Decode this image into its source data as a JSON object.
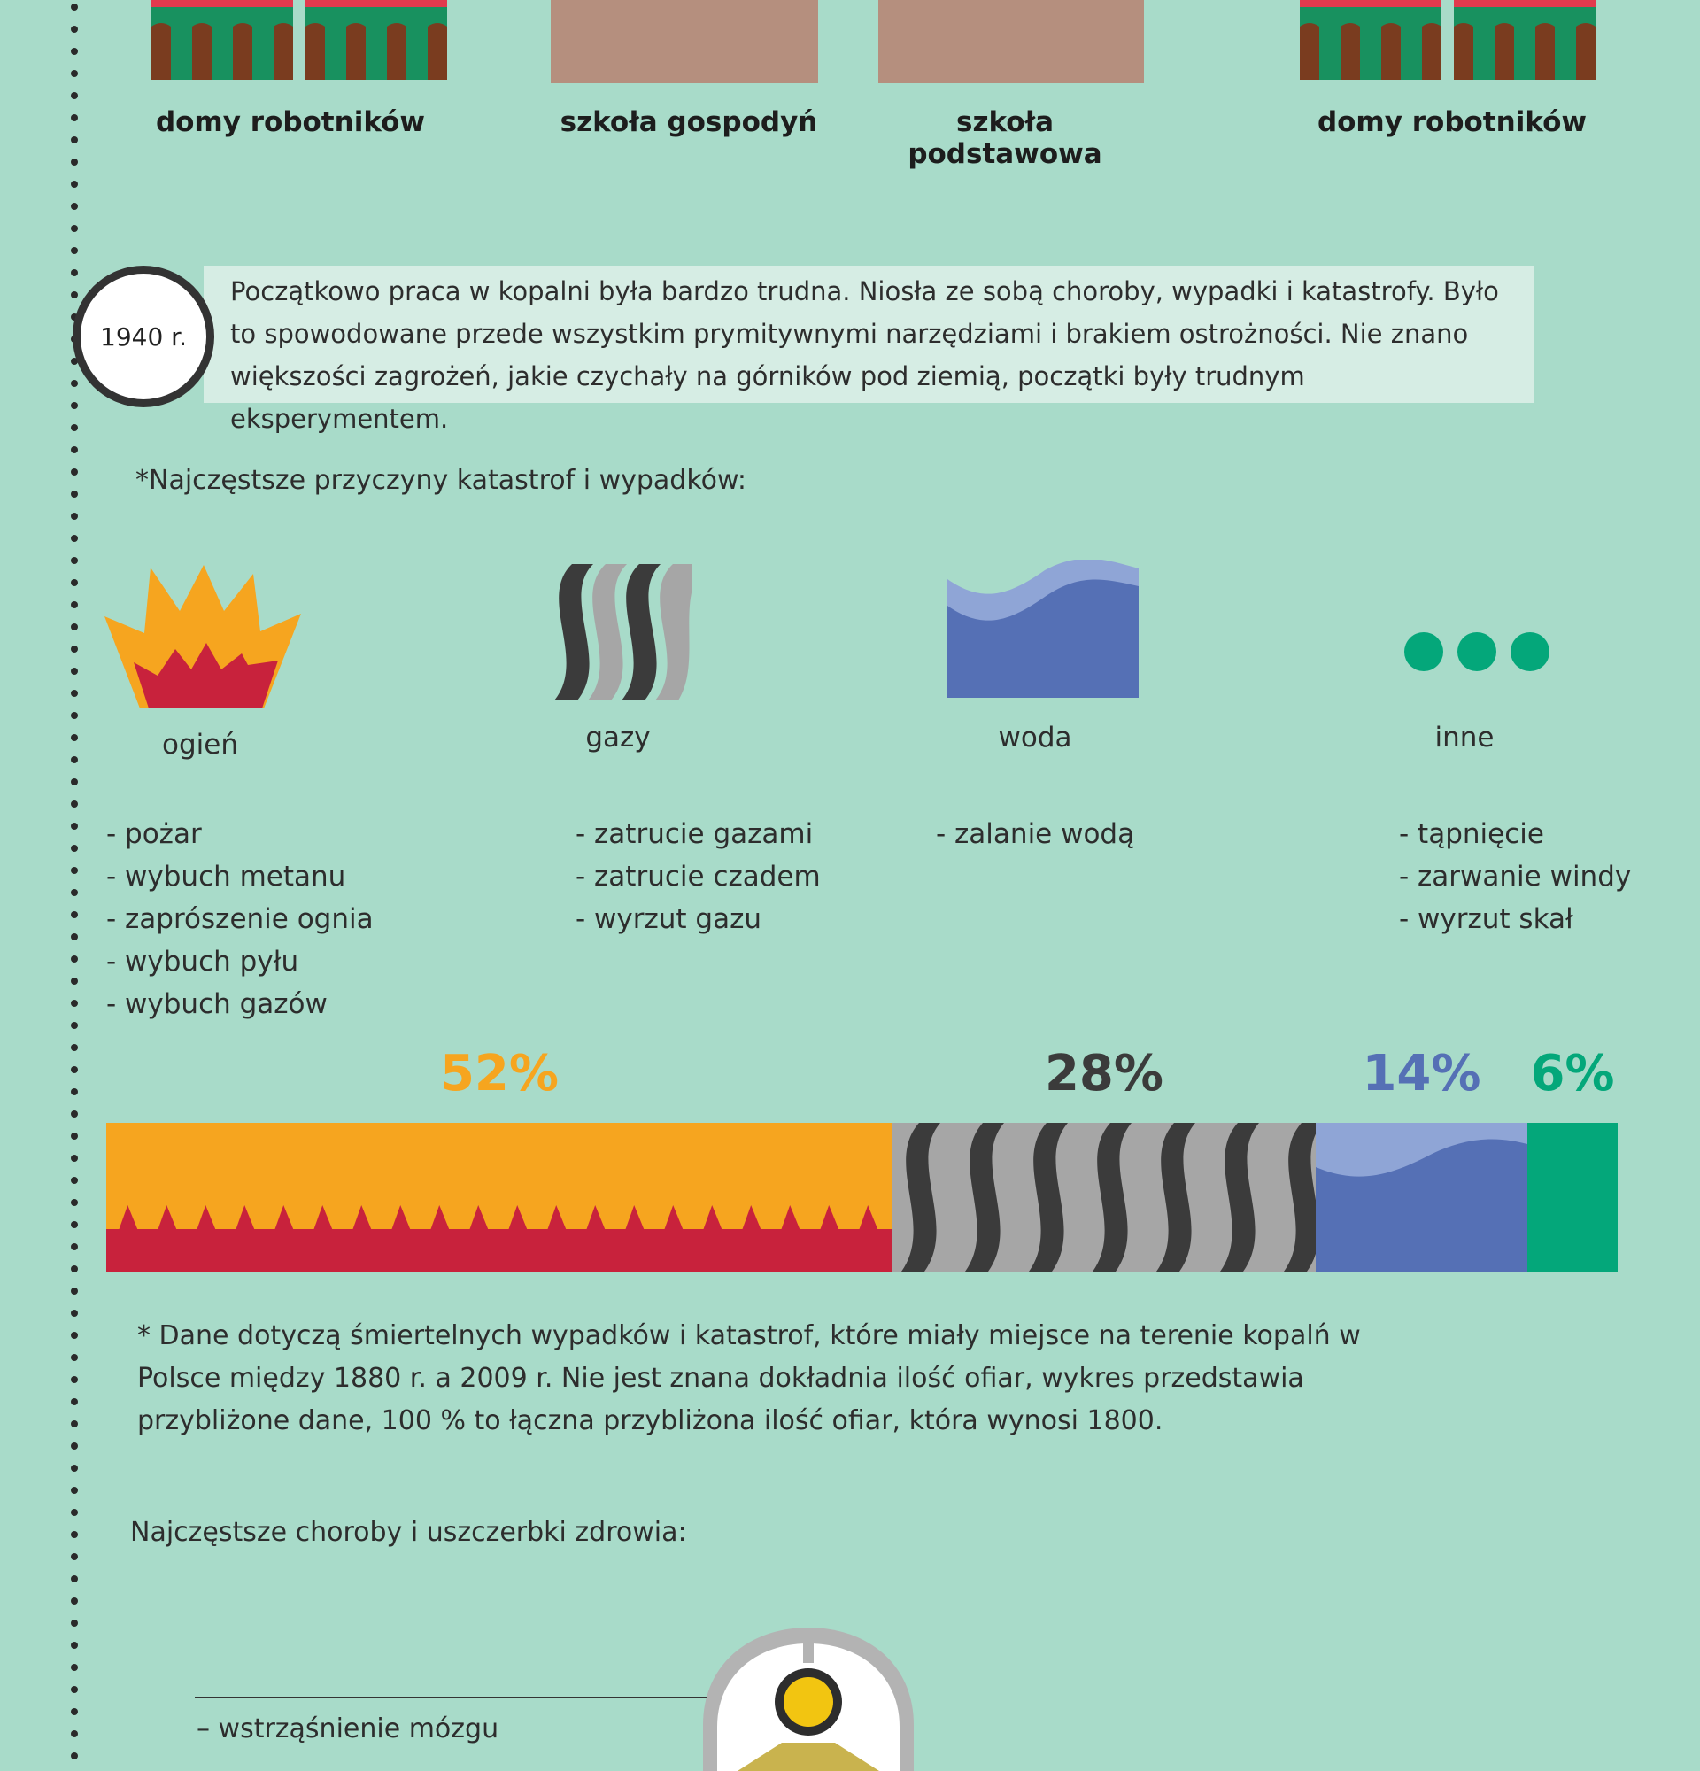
{
  "buildings": [
    {
      "label": "domy robotników"
    },
    {
      "label": "szkoła gospodyń"
    },
    {
      "label": "szkoła podstawowa"
    },
    {
      "label": "domy robotników"
    }
  ],
  "intro": {
    "year": "1940 r.",
    "text": "Początkowo praca w kopalni była bardzo trudna. Niosła ze sobą choroby, wypadki i katastrofy. Było to spowodowane przede wszystkim prymitywnymi narzędziami i brakiem ostrożności. Nie znano większości zagrożeń, jakie czychały na górników pod ziemią, początki były trudnym eksperymentem."
  },
  "causes_heading": "*Najczęstsze przyczyny katastrof i wypadków:",
  "causes": [
    {
      "label": "ogień",
      "icon": "fire-icon",
      "items": [
        "- pożar",
        "- wybuch metanu",
        "- zaprószenie ognia",
        "- wybuch pyłu",
        "- wybuch gazów"
      ]
    },
    {
      "label": "gazy",
      "icon": "gas-icon",
      "items": [
        "- zatrucie gazami",
        "- zatrucie czadem",
        "- wyrzut gazu"
      ]
    },
    {
      "label": "woda",
      "icon": "water-icon",
      "items": [
        "- zalanie wodą"
      ]
    },
    {
      "label": "inne",
      "icon": "more-dots-icon",
      "items": [
        "- tąpnięcie",
        "- zarwanie windy",
        "- wyrzut skał"
      ]
    }
  ],
  "chart_data": {
    "type": "bar",
    "categories": [
      "ogień",
      "gazy",
      "woda",
      "inne"
    ],
    "values": [
      52,
      28,
      14,
      6
    ],
    "labels": [
      "52%",
      "28%",
      "14%",
      "6%"
    ],
    "colors": [
      "#f6a51f",
      "#3b3b3b",
      "#5570b5",
      "#04a77a"
    ]
  },
  "note": "* Dane dotyczą śmiertelnych wypadków i katastrof, które miały miejsce na terenie kopalń w Polsce między 1880 r. a 2009 r. Nie jest znana dokładnia ilość ofiar, wykres przedstawia przybliżone dane, 100 % to łączna przybliżona ilość ofiar, która wynosi 1800.",
  "diseases_heading": "Najczęstsze choroby i uszczerbki zdrowia:",
  "diseases": [
    "– wstrząśnienie mózgu"
  ]
}
